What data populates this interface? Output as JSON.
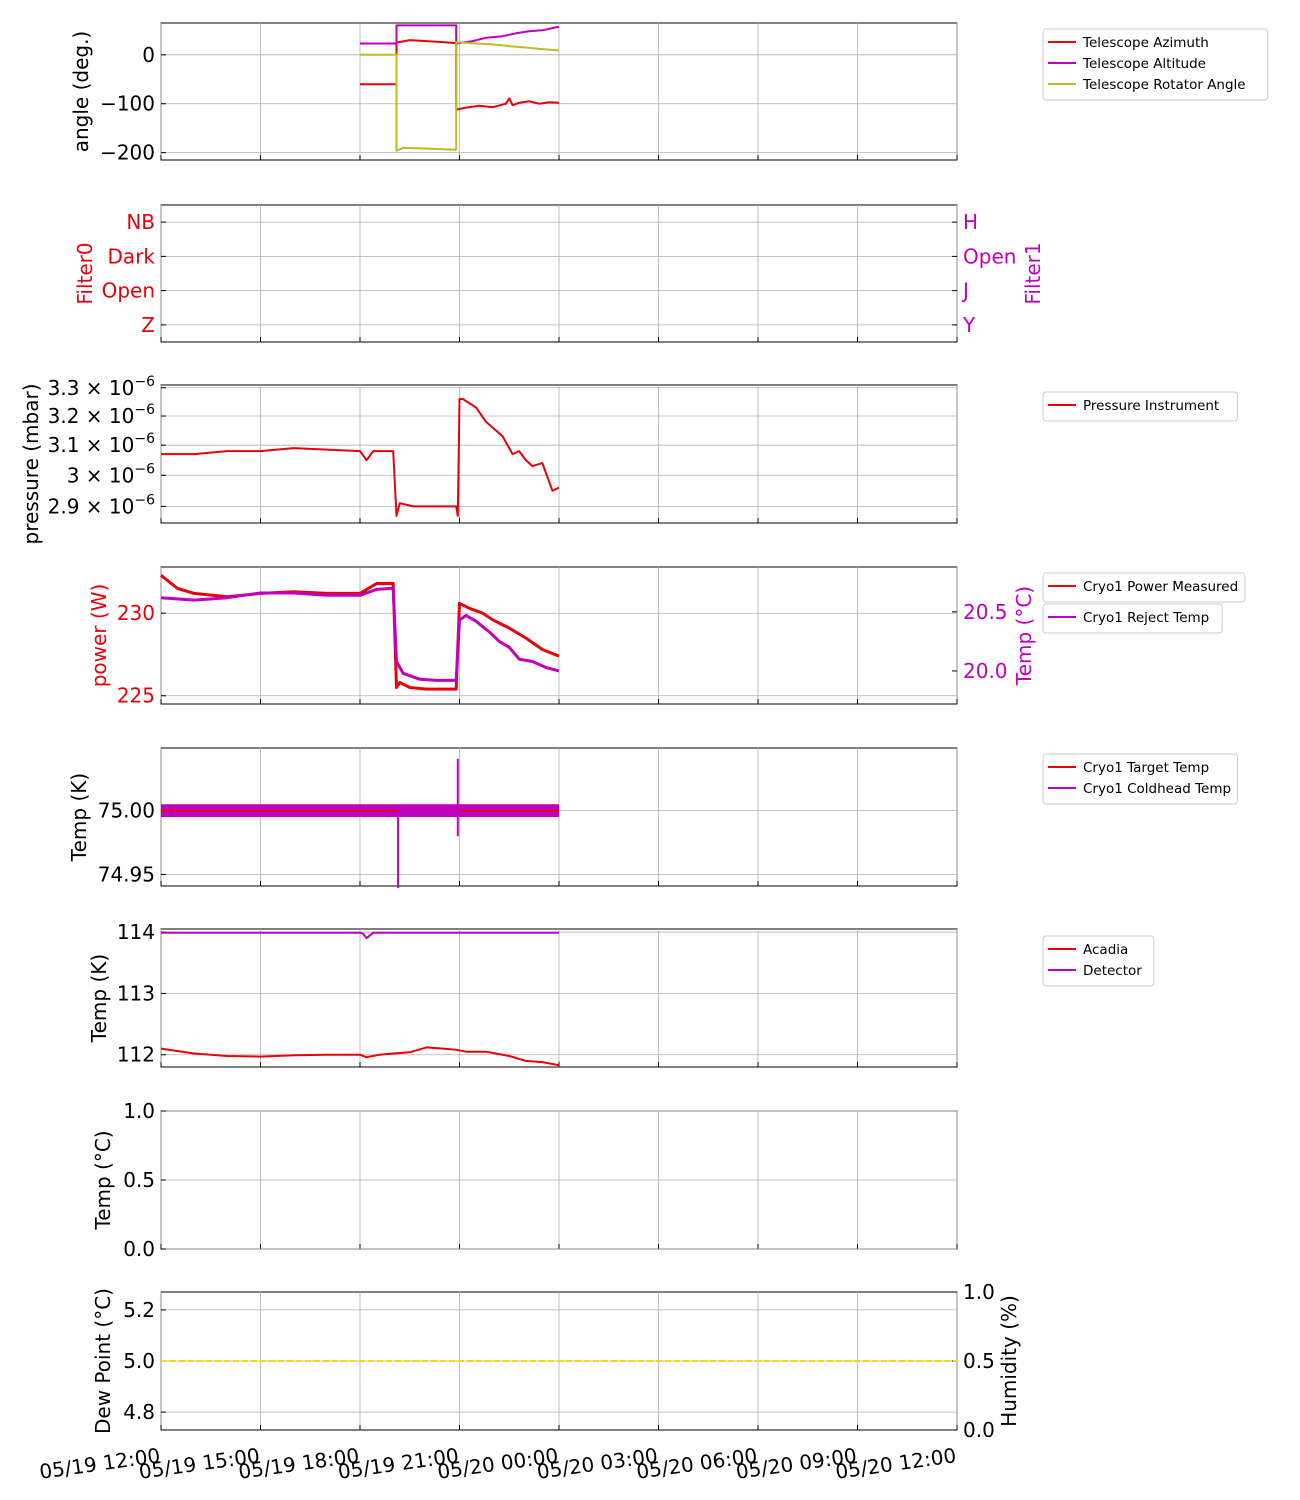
{
  "colors": {
    "red": "#e8000b",
    "magenta": "#c000c0",
    "olive": "#bcbd22",
    "gold": "#ffd700",
    "grid": "#b0b0b0"
  },
  "xaxis": {
    "start": "05/19 12:00",
    "end": "05/20 12:00",
    "unit": "hours",
    "ticks": [
      {
        "h": 0,
        "label": "05/19 12:00"
      },
      {
        "h": 3,
        "label": "05/19 15:00"
      },
      {
        "h": 6,
        "label": "05/19 18:00"
      },
      {
        "h": 9,
        "label": "05/19 21:00"
      },
      {
        "h": 12,
        "label": "05/20 00:00"
      },
      {
        "h": 15,
        "label": "05/20 03:00"
      },
      {
        "h": 18,
        "label": "05/20 06:00"
      },
      {
        "h": 21,
        "label": "05/20 09:00"
      },
      {
        "h": 24,
        "label": "05/20 12:00"
      }
    ]
  },
  "chart_data": [
    {
      "type": "line",
      "ylabel": "angle (deg.)",
      "ylim": [
        -215,
        65
      ],
      "yticks": [
        0,
        -100,
        -200
      ],
      "grid": true,
      "legend": "right",
      "series": [
        {
          "name": "Telescope Azimuth",
          "color": "#e8000b",
          "x": [
            6.0,
            7.1,
            7.1,
            7.5,
            8.0,
            8.5,
            8.9,
            8.9,
            9.2,
            9.6,
            10.0,
            10.4,
            10.5,
            10.6,
            10.8,
            11.1,
            11.4,
            11.7,
            12.0
          ],
          "y": [
            -60,
            -60,
            25,
            30,
            28,
            26,
            24,
            -112,
            -108,
            -104,
            -107,
            -100,
            -89,
            -103,
            -98,
            -95,
            -100,
            -97,
            -98
          ]
        },
        {
          "name": "Telescope Altitude",
          "color": "#c000c0",
          "x": [
            6.0,
            7.1,
            7.1,
            8.9,
            8.9,
            9.4,
            9.8,
            10.3,
            10.7,
            11.1,
            11.5,
            11.9,
            12.0
          ],
          "y": [
            23,
            23,
            60,
            60,
            23,
            28,
            35,
            38,
            44,
            48,
            50,
            56,
            57
          ]
        },
        {
          "name": "Telescope Rotator Angle",
          "color": "#bcbd22",
          "x": [
            6.0,
            7.1,
            7.1,
            7.3,
            8.9,
            8.9,
            9.3,
            9.8,
            10.2,
            10.6,
            11.0,
            11.4,
            11.8,
            12.0
          ],
          "y": [
            0,
            0,
            -196,
            -190,
            -194,
            26,
            24,
            22,
            20,
            17,
            15,
            12,
            10,
            9
          ]
        }
      ]
    },
    {
      "type": "line",
      "left_ylabel": "Filter0",
      "right_ylabel": "Filter1",
      "left_ticks": [
        "Z",
        "Open",
        "Dark",
        "NB"
      ],
      "right_ticks": [
        "Y",
        "J",
        "Open",
        "H"
      ],
      "ylim": [
        -0.5,
        3.5
      ],
      "grid": true,
      "series": []
    },
    {
      "type": "line",
      "ylabel": "pressure (mbar)",
      "ylim": [
        2.848e-06,
        3.31e-06
      ],
      "log_scale": true,
      "yticks": [
        {
          "v": 2.9e-06,
          "base": "2.9 × 10",
          "exp": "−6"
        },
        {
          "v": 3e-06,
          "base": "3 × 10",
          "exp": "−6"
        },
        {
          "v": 3.1e-06,
          "base": "3.1 × 10",
          "exp": "−6"
        },
        {
          "v": 3.2e-06,
          "base": "3.2 × 10",
          "exp": "−6"
        },
        {
          "v": 3.3e-06,
          "base": "3.3 × 10",
          "exp": "−6"
        }
      ],
      "grid": true,
      "legend": "right",
      "series": [
        {
          "name": "Pressure Instrument",
          "color": "#e8000b",
          "x": [
            0,
            1,
            2,
            3,
            4,
            5,
            6,
            6.2,
            6.4,
            7.0,
            7.1,
            7.2,
            7.6,
            8.0,
            8.5,
            8.9,
            8.95,
            9.0,
            9.1,
            9.5,
            9.8,
            10.0,
            10.3,
            10.6,
            10.8,
            11.0,
            11.2,
            11.5,
            11.8,
            12.0
          ],
          "y": [
            3.07e-06,
            3.07e-06,
            3.08e-06,
            3.08e-06,
            3.09e-06,
            3.085e-06,
            3.08e-06,
            3.05e-06,
            3.08e-06,
            3.08e-06,
            2.87e-06,
            2.91e-06,
            2.9e-06,
            2.9e-06,
            2.9e-06,
            2.9e-06,
            2.87e-06,
            3.26e-06,
            3.26e-06,
            3.23e-06,
            3.18e-06,
            3.16e-06,
            3.13e-06,
            3.07e-06,
            3.08e-06,
            3.05e-06,
            3.03e-06,
            3.04e-06,
            2.95e-06,
            2.96e-06
          ]
        }
      ]
    },
    {
      "type": "line",
      "left_ylabel": "power (W)",
      "right_ylabel": "Temp (°C)",
      "left_ylim": [
        224.5,
        232.8
      ],
      "left_yticks": [
        225,
        230
      ],
      "right_ylim": [
        19.72,
        20.88
      ],
      "right_yticks": [
        20.0,
        20.5
      ],
      "grid": true,
      "legend": "right",
      "series": [
        {
          "name": "Cryo1 Power Measured",
          "axis": "left",
          "color": "#e8000b",
          "x": [
            0,
            0.5,
            1,
            2,
            3,
            4,
            5,
            6,
            6.5,
            7.0,
            7.1,
            7.2,
            7.5,
            8,
            8.5,
            8.9,
            9.0,
            9.3,
            9.7,
            10.0,
            10.5,
            11.0,
            11.5,
            12.0
          ],
          "y": [
            232.3,
            231.5,
            231.2,
            231.0,
            231.2,
            231.3,
            231.2,
            231.2,
            231.8,
            231.8,
            225.5,
            225.8,
            225.5,
            225.4,
            225.4,
            225.4,
            230.6,
            230.3,
            230.0,
            229.6,
            229.1,
            228.5,
            227.8,
            227.4
          ]
        },
        {
          "name": "Cryo1 Reject Temp",
          "axis": "right",
          "color": "#c000c0",
          "x": [
            0,
            1,
            2,
            3,
            4,
            5,
            6,
            6.5,
            7.0,
            7.1,
            7.3,
            7.8,
            8.3,
            8.9,
            9.0,
            9.2,
            9.5,
            9.9,
            10.2,
            10.5,
            10.8,
            11.2,
            11.6,
            12.0
          ],
          "y": [
            20.62,
            20.6,
            20.62,
            20.66,
            20.66,
            20.64,
            20.64,
            20.69,
            20.7,
            20.08,
            19.98,
            19.93,
            19.92,
            19.92,
            20.43,
            20.47,
            20.42,
            20.33,
            20.25,
            20.2,
            20.1,
            20.08,
            20.03,
            20.0
          ]
        }
      ]
    },
    {
      "type": "line",
      "ylabel": "Temp (K)",
      "ylim": [
        74.941,
        75.049
      ],
      "yticks": [
        75.0,
        74.95
      ],
      "ytick_labels": [
        "75.00",
        "74.95"
      ],
      "grid": true,
      "legend": "right",
      "band": {
        "from": 74.995,
        "to": 75.005,
        "x0": 0,
        "x1": 12,
        "color": "#c000c0"
      },
      "series": [
        {
          "name": "Cryo1 Target Temp",
          "color": "#e8000b",
          "x": [
            0,
            12
          ],
          "y": [
            75.0,
            75.0
          ]
        },
        {
          "name": "Cryo1 Coldhead Temp",
          "color": "#c000c0",
          "x": [
            7.15,
            7.15,
            7.15,
            8.95,
            8.95,
            8.95
          ],
          "y": [
            75.0,
            74.94,
            75.0,
            75.0,
            75.04,
            74.98
          ]
        }
      ]
    },
    {
      "type": "line",
      "ylabel": "Temp (K)",
      "ylim": [
        111.8,
        114.05
      ],
      "yticks": [
        112,
        113,
        114
      ],
      "grid": true,
      "legend": "right",
      "series": [
        {
          "name": "Acadia",
          "color": "#e8000b",
          "x": [
            0,
            1,
            2,
            3,
            4,
            5,
            6,
            6.2,
            6.6,
            7.0,
            7.5,
            8.0,
            8.5,
            8.9,
            9.2,
            9.8,
            10.5,
            11.0,
            11.5,
            12.0
          ],
          "y": [
            112.1,
            112.02,
            111.98,
            111.97,
            111.99,
            112.0,
            112.0,
            111.96,
            112.0,
            112.02,
            112.04,
            112.12,
            112.1,
            112.08,
            112.05,
            112.05,
            111.98,
            111.9,
            111.88,
            111.83
          ]
        },
        {
          "name": "Detector",
          "color": "#c000c0",
          "x": [
            0,
            6.0,
            6.1,
            6.2,
            6.4,
            7,
            8,
            9,
            10,
            11,
            12
          ],
          "y": [
            113.99,
            113.99,
            113.97,
            113.9,
            113.99,
            113.99,
            113.99,
            113.99,
            113.99,
            113.99,
            113.99
          ]
        }
      ]
    },
    {
      "type": "line",
      "ylabel": "Temp (°C)",
      "ylim": [
        0,
        1
      ],
      "yticks": [
        0.0,
        0.5,
        1.0
      ],
      "ytick_labels": [
        "0.0",
        "0.5",
        "1.0"
      ],
      "grid": true,
      "series": []
    },
    {
      "type": "line",
      "left_ylabel": "Dew Point (°C)",
      "right_ylabel": "Humidity (%)",
      "left_ylim": [
        4.73,
        5.27
      ],
      "left_yticks": [
        4.8,
        5.0,
        5.2
      ],
      "right_ylim": [
        0,
        1
      ],
      "right_yticks": [
        0.0,
        0.5,
        1.0
      ],
      "grid": true,
      "series": [
        {
          "axis": "left",
          "color": "#ffd700",
          "dashed": true,
          "x": [
            0,
            24
          ],
          "y": [
            5.0,
            5.0
          ]
        }
      ]
    }
  ]
}
